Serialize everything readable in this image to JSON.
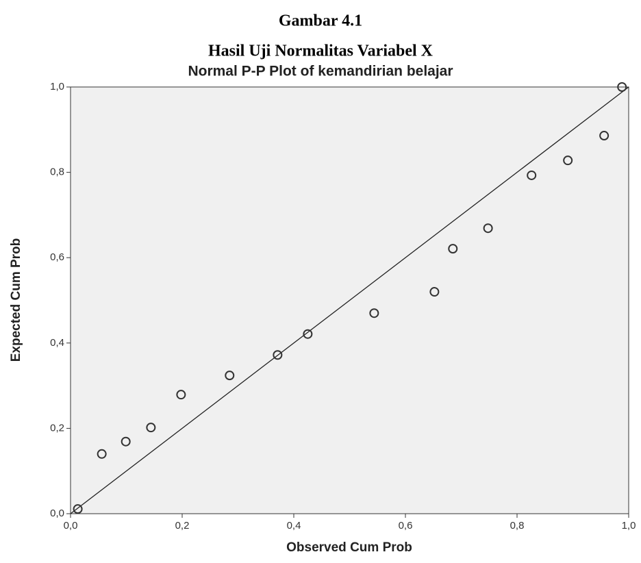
{
  "caption": {
    "label": "Gambar 4.1",
    "title": "Hasil Uji Normalitas Variabel X"
  },
  "chart_data": {
    "type": "scatter",
    "title": "Normal P-P Plot of kemandirian belajar",
    "xlabel": "Observed Cum Prob",
    "ylabel": "Expected Cum Prob",
    "x": [
      0.013,
      0.056,
      0.099,
      0.144,
      0.198,
      0.285,
      0.371,
      0.425,
      0.544,
      0.652,
      0.685,
      0.748,
      0.826,
      0.891,
      0.956,
      0.988
    ],
    "values": [
      0.011,
      0.14,
      0.169,
      0.202,
      0.279,
      0.324,
      0.372,
      0.421,
      0.47,
      0.52,
      0.621,
      0.669,
      0.793,
      0.828,
      0.886,
      1.0
    ],
    "color": "#333333",
    "xlim": [
      0,
      1
    ],
    "ylim": [
      0,
      1
    ],
    "xticks": [
      {
        "value": 0,
        "label": "0,0"
      },
      {
        "value": 0.2,
        "label": "0,2"
      },
      {
        "value": 0.4,
        "label": "0,4"
      },
      {
        "value": 0.6,
        "label": "0,6"
      },
      {
        "value": 0.8,
        "label": "0,8"
      },
      {
        "value": 1,
        "label": "1,0"
      }
    ],
    "yticks": [
      {
        "value": 0,
        "label": "0,0"
      },
      {
        "value": 0.2,
        "label": "0,2"
      },
      {
        "value": 0.4,
        "label": "0,4"
      },
      {
        "value": 0.6,
        "label": "0,6"
      },
      {
        "value": 0.8,
        "label": "0,8"
      },
      {
        "value": 1,
        "label": "1,0"
      }
    ],
    "reference_line": true
  }
}
